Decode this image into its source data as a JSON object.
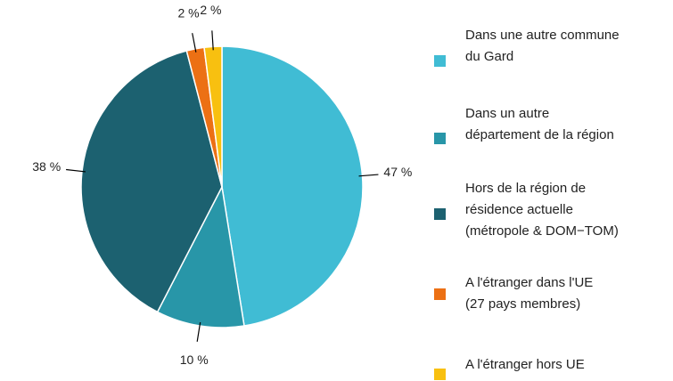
{
  "chart_data": {
    "type": "pie",
    "categories": [
      "Dans une autre commune\ndu Gard",
      "Dans un autre\ndépartement de la région",
      "Hors de la région de\nrésidence actuelle\n(métropole & DOM−TOM)",
      "A l'étranger dans l'UE\n(27 pays membres)",
      "A l'étranger hors UE"
    ],
    "values": [
      47,
      10,
      38,
      2,
      2
    ],
    "value_labels": [
      "47 %",
      "10 %",
      "38 %",
      "2 %",
      "2 %"
    ],
    "colors": [
      "#40bcd4",
      "#2896a8",
      "#1c6170",
      "#ec7014",
      "#f8c010"
    ],
    "legend": "right"
  }
}
